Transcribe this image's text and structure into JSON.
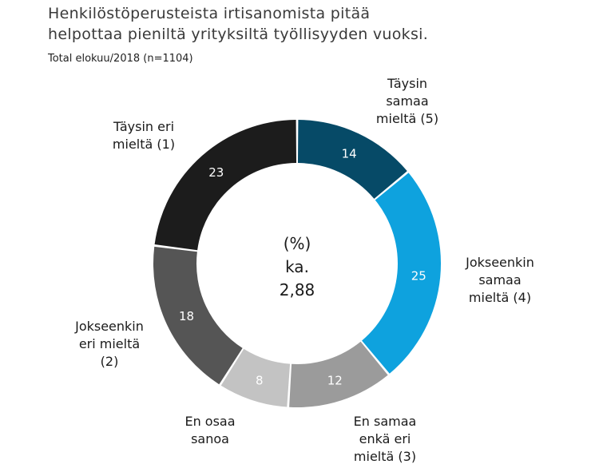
{
  "chart_data": {
    "type": "donut",
    "title_lines": [
      "Henkilöstöperusteista irtisanomista pitää",
      "helpottaa pieniltä yrityksiltä työllisyyden vuoksi."
    ],
    "subtitle": "Total elokuu/2018 (n=1104)",
    "center_lines": [
      "(%)",
      "ka.",
      "2,88"
    ],
    "slices": [
      {
        "label_lines": [
          "Täysin",
          "samaa",
          "mieltä (5)"
        ],
        "value": 14,
        "color": "#064a67",
        "value_color": "#ffffff",
        "label_color": "#1a1a1a"
      },
      {
        "label_lines": [
          "Jokseenkin",
          "samaa",
          "mieltä (4)"
        ],
        "value": 25,
        "color": "#0ea2de",
        "value_color": "#ffffff",
        "label_color": "#1a1a1a"
      },
      {
        "label_lines": [
          "En samaa",
          "enkä eri",
          "mieltä (3)"
        ],
        "value": 12,
        "color": "#9b9b9b",
        "value_color": "#ffffff",
        "label_color": "#1a1a1a"
      },
      {
        "label_lines": [
          "En osaa",
          "sanoa"
        ],
        "value": 8,
        "color": "#c3c3c3",
        "value_color": "#ffffff",
        "label_color": "#8a8a8a"
      },
      {
        "label_lines": [
          "Jokseenkin",
          "eri mieltä",
          "(2)"
        ],
        "value": 18,
        "color": "#555555",
        "value_color": "#ffffff",
        "label_color": "#1a1a1a"
      },
      {
        "label_lines": [
          "Täysin eri",
          "mieltä (1)"
        ],
        "value": 23,
        "color": "#1c1c1c",
        "value_color": "#ffffff",
        "label_color": "#1a1a1a"
      }
    ]
  }
}
